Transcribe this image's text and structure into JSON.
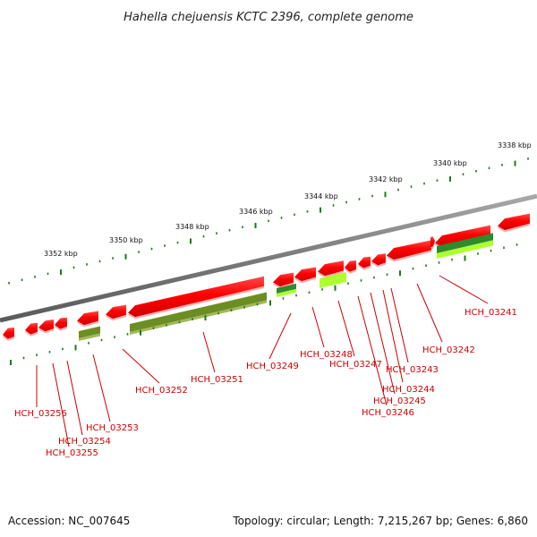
{
  "title": "Hahella chejuensis KCTC 2396, complete genome",
  "footer": {
    "accession": "Accession: NC_007645",
    "summary": "Topology: circular; Length: 7,215,267 bp; Genes: 6,860"
  },
  "scale_labels": [
    "3352 kbp",
    "3350 kbp",
    "3348 kbp",
    "3346 kbp",
    "3344 kbp",
    "3342 kbp",
    "3340 kbp",
    "3338 kbp"
  ],
  "gene_labels": [
    "HCH_03241",
    "HCH_03242",
    "HCH_03243",
    "HCH_03244",
    "HCH_03245",
    "HCH_03246",
    "HCH_03247",
    "HCH_03248",
    "HCH_03249",
    "HCH_03251",
    "HCH_03252",
    "HCH_03253",
    "HCH_03254",
    "HCH_03255",
    "HCH_03256"
  ],
  "colors": {
    "cds": "#ff0000",
    "cds_light": "#ff6a6a",
    "backbone": "#808080",
    "tick": "#1a7a1a",
    "olive": "#6b8e23",
    "dark_green": "#2e8b2e",
    "lime": "#adff2f",
    "label": "#cc0000"
  }
}
